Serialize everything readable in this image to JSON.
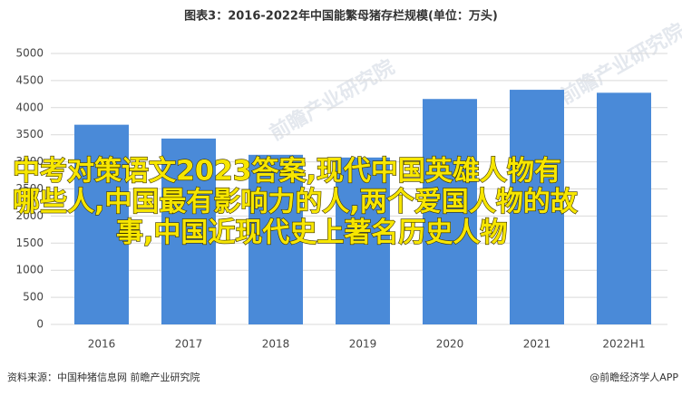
{
  "chart_data": {
    "type": "bar",
    "title": "图表3：2016-2022年中国能繁母猪存栏规模(单位：万头)",
    "categories": [
      "2016",
      "2017",
      "2018",
      "2019",
      "2020",
      "2021",
      "2022H1"
    ],
    "values": [
      3685,
      3430,
      3130,
      3080,
      4160,
      4330,
      4275
    ],
    "color": "#4a8ad8",
    "ylim": [
      0,
      5000
    ],
    "yticks": [
      0,
      500,
      1000,
      1500,
      2000,
      2500,
      3000,
      3500,
      4000,
      4500,
      5000
    ],
    "grid": true,
    "source": "资料来源：中国种猪信息网 前瞻产业研究院",
    "credit": "@前瞻经济学人APP",
    "watermark": "前瞻产业研究院",
    "overlay": [
      "中考对策语文2023答案,现代中国英雄人物有",
      "哪些人,中国最有影响力的人,两个爱国人物的故",
      "事,中国近现代史上著名历史人物"
    ]
  }
}
